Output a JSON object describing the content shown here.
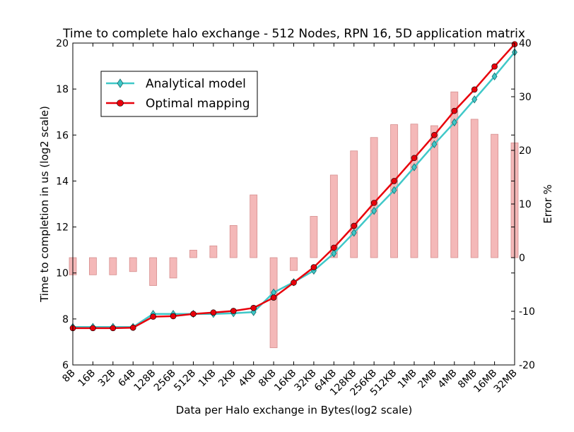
{
  "chart_data": {
    "type": "line",
    "title": "Time to complete halo exchange - 512 Nodes, RPN 16, 5D application matrix",
    "xlabel": "Data per Halo exchange in Bytes(log2 scale)",
    "ylabel": "Time to completion in us (log2 scale)",
    "y2label": "Error %",
    "categories": [
      "8B",
      "16B",
      "32B",
      "64B",
      "128B",
      "256B",
      "512B",
      "1KB",
      "2KB",
      "4KB",
      "8KB",
      "16KB",
      "32KB",
      "64KB",
      "128KB",
      "256KB",
      "512KB",
      "1MB",
      "2MB",
      "4MB",
      "8MB",
      "16MB",
      "32MB"
    ],
    "ylim": [
      6,
      20
    ],
    "y2lim": [
      -20,
      40
    ],
    "yticks": [
      6,
      8,
      10,
      12,
      14,
      16,
      18,
      20
    ],
    "y2ticks": [
      -20,
      -10,
      0,
      10,
      20,
      30,
      40
    ],
    "series": [
      {
        "name": "Analytical model",
        "color": "#3fc8c8",
        "marker": "diamond",
        "values": [
          7.65,
          7.65,
          7.65,
          7.65,
          8.22,
          8.22,
          8.22,
          8.22,
          8.25,
          8.3,
          9.15,
          9.6,
          10.1,
          10.85,
          11.75,
          12.7,
          13.6,
          14.6,
          15.6,
          16.55,
          17.55,
          18.55,
          19.6
        ]
      },
      {
        "name": "Optimal mapping",
        "color": "#e8000b",
        "marker": "circle",
        "values": [
          7.6,
          7.6,
          7.6,
          7.62,
          8.1,
          8.12,
          8.22,
          8.28,
          8.35,
          8.48,
          8.93,
          9.58,
          10.25,
          11.1,
          12.05,
          13.05,
          14.0,
          15.0,
          16.0,
          17.05,
          17.98,
          18.98,
          19.95
        ]
      }
    ],
    "error_bars": {
      "name": "Error %",
      "color": "#f4b8b8",
      "edge": "#d68f8f",
      "values": [
        -3.2,
        -3.2,
        -3.2,
        -2.6,
        -5.2,
        -3.8,
        1.4,
        2.2,
        6.0,
        11.7,
        -16.8,
        -2.4,
        7.7,
        15.4,
        19.9,
        22.4,
        24.8,
        24.9,
        24.6,
        30.9,
        25.8,
        23.0,
        21.4
      ]
    },
    "legend_position": "top-left",
    "grid": false
  }
}
